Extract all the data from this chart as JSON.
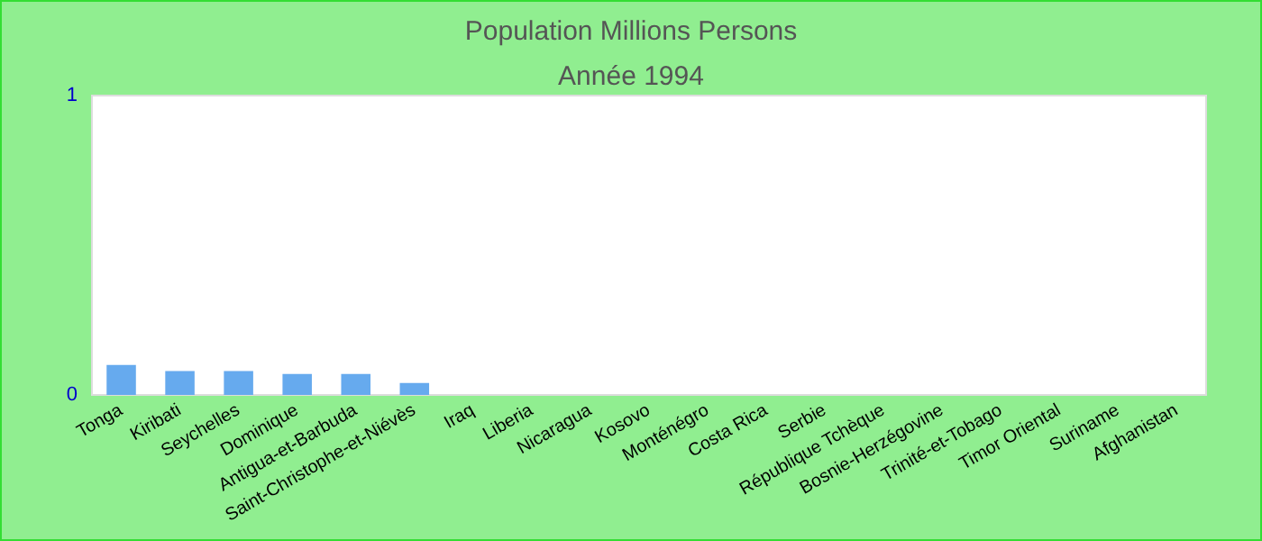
{
  "chart_data": {
    "type": "bar",
    "title": "Population Millions Persons",
    "subtitle": "Année 1994",
    "categories": [
      "Tonga",
      "Kiribati",
      "Seychelles",
      "Dominique",
      "Antigua-et-Barbuda",
      "Saint-Christophe-et-Niévès",
      "Iraq",
      "Liberia",
      "Nicaragua",
      "Kosovo",
      "Monténégro",
      "Costa Rica",
      "Serbie",
      "République Tchèque",
      "Bosnie-Herzégovine",
      "Trinité-et-Tobago",
      "Timor Oriental",
      "Suriname",
      "Afghanistan"
    ],
    "values": [
      0.1,
      0.08,
      0.08,
      0.07,
      0.07,
      0.04,
      null,
      null,
      null,
      null,
      null,
      null,
      null,
      null,
      null,
      null,
      null,
      null,
      null
    ],
    "color": "#66aaee",
    "ylim": [
      0,
      1
    ],
    "yticks": [
      0,
      1
    ]
  }
}
